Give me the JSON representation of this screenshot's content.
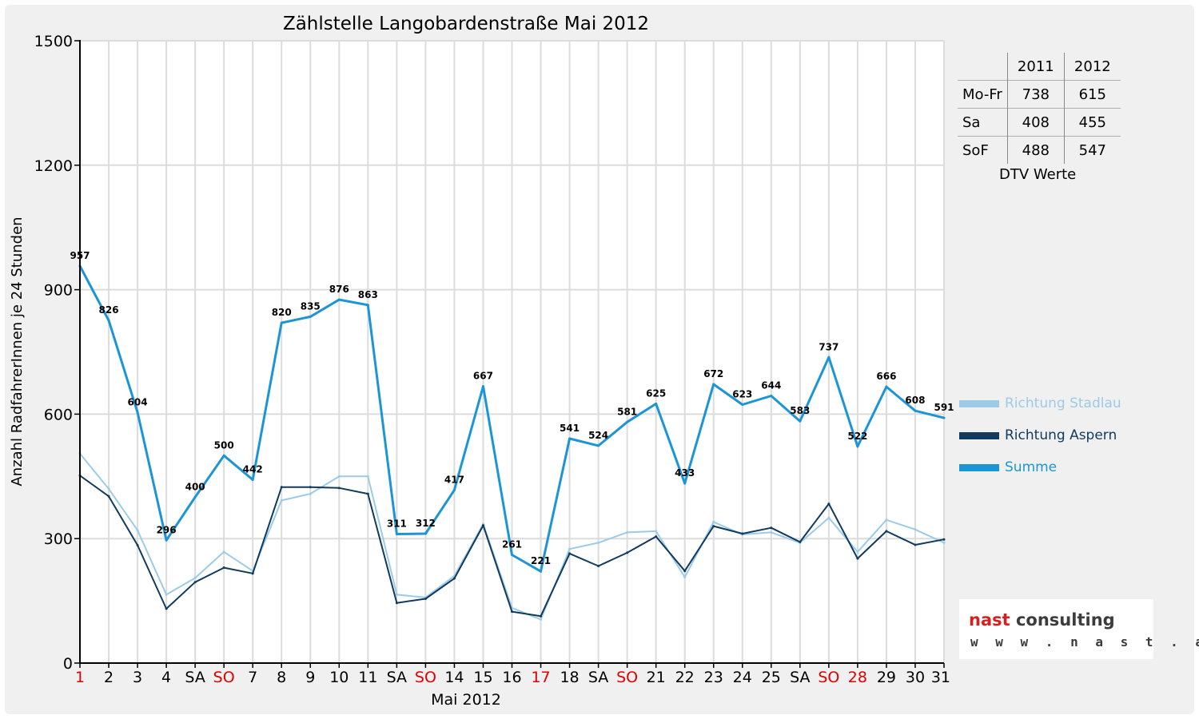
{
  "chart_data": {
    "type": "line",
    "title": "Zählstelle Langobardenstraße Mai 2012",
    "xlabel": "Mai 2012",
    "ylabel": "Anzahl RadfahrerInnen je 24 Stunden",
    "ylim": [
      0,
      1500
    ],
    "yticks": [
      "0",
      "300",
      "600",
      "900",
      "1200",
      "1500"
    ],
    "grid": true,
    "legend_position": "right",
    "categories": [
      "1",
      "2",
      "3",
      "4",
      "SA",
      "SO",
      "7",
      "8",
      "9",
      "10",
      "11",
      "SA",
      "SO",
      "14",
      "15",
      "16",
      "17",
      "18",
      "SA",
      "SO",
      "21",
      "22",
      "23",
      "24",
      "25",
      "SA",
      "SO",
      "28",
      "29",
      "30",
      "31"
    ],
    "category_colors": [
      "#e00000",
      "#000000",
      "#000000",
      "#000000",
      "#000000",
      "#e00000",
      "#000000",
      "#000000",
      "#000000",
      "#000000",
      "#000000",
      "#000000",
      "#e00000",
      "#000000",
      "#000000",
      "#000000",
      "#e00000",
      "#000000",
      "#000000",
      "#e00000",
      "#000000",
      "#000000",
      "#000000",
      "#000000",
      "#000000",
      "#000000",
      "#e00000",
      "#e00000",
      "#000000",
      "#000000",
      "#000000"
    ],
    "series": [
      {
        "name": "Richtung Stadlau",
        "color": "#9ccbe8",
        "width": 2,
        "labels": false,
        "values": [
          505,
          420,
          320,
          165,
          205,
          268,
          222,
          392,
          408,
          450,
          450,
          165,
          158,
          210,
          335,
          133,
          105,
          275,
          290,
          315,
          318,
          207,
          340,
          310,
          315,
          290,
          350,
          268,
          345,
          322,
          290
        ]
      },
      {
        "name": "Richtung Aspern",
        "color": "#103a5e",
        "width": 2,
        "labels": false,
        "values": [
          452,
          402,
          284,
          131,
          195,
          230,
          216,
          424,
          424,
          422,
          408,
          145,
          155,
          204,
          332,
          124,
          113,
          264,
          234,
          266,
          305,
          222,
          330,
          312,
          326,
          292,
          384,
          252,
          318,
          285,
          298
        ]
      },
      {
        "name": "Summe",
        "color": "#1c95d6",
        "width": 3,
        "labels": true,
        "values": [
          957,
          826,
          604,
          296,
          400,
          500,
          442,
          820,
          835,
          876,
          863,
          311,
          312,
          417,
          667,
          261,
          221,
          541,
          524,
          581,
          625,
          433,
          672,
          623,
          644,
          583,
          737,
          522,
          666,
          608,
          591
        ]
      }
    ]
  },
  "dtv": {
    "columns": [
      "2011",
      "2012"
    ],
    "rows": [
      {
        "label": "Mo-Fr",
        "v2011": "738",
        "v2012": "615"
      },
      {
        "label": "Sa",
        "v2011": "408",
        "v2012": "455"
      },
      {
        "label": "SoF",
        "v2011": "488",
        "v2012": "547"
      }
    ],
    "caption": "DTV Werte"
  },
  "logo": {
    "brand": "nast",
    "suffix": " consulting",
    "url": "w w w . n a s t . a t"
  }
}
